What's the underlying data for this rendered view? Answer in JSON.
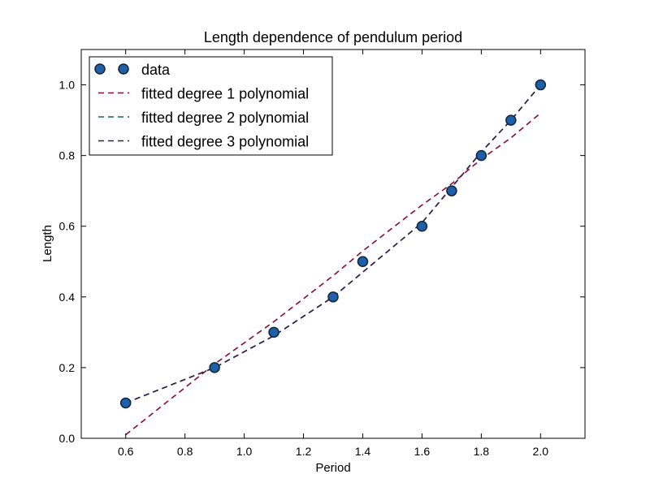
{
  "chart_data": {
    "type": "line",
    "title": "Length dependence of pendulum period",
    "xlabel": "Period",
    "ylabel": "Length",
    "xlim": [
      0.45,
      2.15
    ],
    "ylim": [
      0.0,
      1.1
    ],
    "xticks": [
      0.6,
      0.8,
      1.0,
      1.2,
      1.4,
      1.6,
      1.8,
      2.0
    ],
    "xtick_labels": [
      "0.6",
      "0.8",
      "1.0",
      "1.2",
      "1.4",
      "1.6",
      "1.8",
      "2.0"
    ],
    "yticks": [
      0.0,
      0.2,
      0.4,
      0.6,
      0.8,
      1.0
    ],
    "ytick_labels": [
      "0.0",
      "0.2",
      "0.4",
      "0.6",
      "0.8",
      "1.0"
    ],
    "grid": false,
    "legend_position": "top-left",
    "series": [
      {
        "name": "data",
        "kind": "scatter",
        "color": "#1f5fa8",
        "x": [
          0.6,
          0.9,
          1.1,
          1.3,
          1.4,
          1.6,
          1.7,
          1.8,
          1.9,
          2.0
        ],
        "y": [
          0.1,
          0.2,
          0.3,
          0.4,
          0.5,
          0.6,
          0.7,
          0.8,
          0.9,
          1.0
        ]
      },
      {
        "name": "fitted degree 1 polynomial",
        "kind": "dashed-line",
        "color": "#8b0a35",
        "x": [
          0.6,
          0.9,
          1.1,
          1.3,
          1.4,
          1.6,
          1.7,
          1.8,
          1.9,
          2.0
        ],
        "y": [
          0.01,
          0.21,
          0.33,
          0.46,
          0.53,
          0.66,
          0.72,
          0.79,
          0.85,
          0.92
        ]
      },
      {
        "name": "fitted degree 2 polynomial",
        "kind": "dashed-line",
        "color": "#0b6e58",
        "x": [
          0.6,
          0.9,
          1.1,
          1.3,
          1.4,
          1.6,
          1.7,
          1.8,
          1.9,
          2.0
        ],
        "y": [
          0.1,
          0.2,
          0.29,
          0.4,
          0.47,
          0.61,
          0.71,
          0.81,
          0.9,
          1.0
        ]
      },
      {
        "name": "fitted degree 3 polynomial",
        "kind": "dashed-line",
        "color": "#3b1650",
        "x": [
          0.6,
          0.9,
          1.1,
          1.3,
          1.4,
          1.6,
          1.7,
          1.8,
          1.9,
          2.0
        ],
        "y": [
          0.1,
          0.2,
          0.29,
          0.4,
          0.47,
          0.61,
          0.71,
          0.81,
          0.9,
          1.0
        ]
      }
    ]
  }
}
